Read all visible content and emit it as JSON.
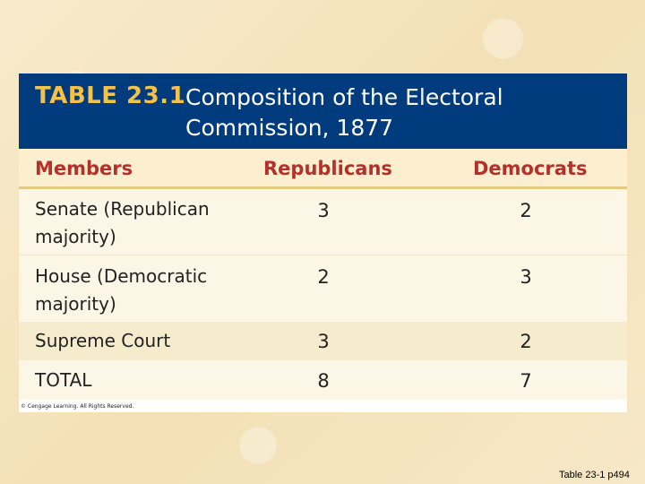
{
  "table": {
    "number": "TABLE 23.1",
    "title": "Composition of the Electoral Commission, 1877",
    "columns": [
      "Members",
      "Republicans",
      "Democrats"
    ],
    "rows": [
      {
        "member": "Senate (Republican majority)",
        "republicans": "3",
        "democrats": "2"
      },
      {
        "member": "House (Democratic majority)",
        "republicans": "2",
        "democrats": "3"
      },
      {
        "member": "Supreme Court",
        "republicans": "3",
        "democrats": "2"
      },
      {
        "member": "TOTAL",
        "republicans": "8",
        "democrats": "7"
      }
    ],
    "copyright": "© Cengage Learning. All Rights Reserved."
  },
  "caption": "Table 23-1 p494",
  "colors": {
    "header_bg": "#003c7d",
    "table_number": "#f2c24a",
    "column_heading": "#b5302a",
    "row_light": "#fbf6e6",
    "row_dark": "#f6ebcc"
  }
}
